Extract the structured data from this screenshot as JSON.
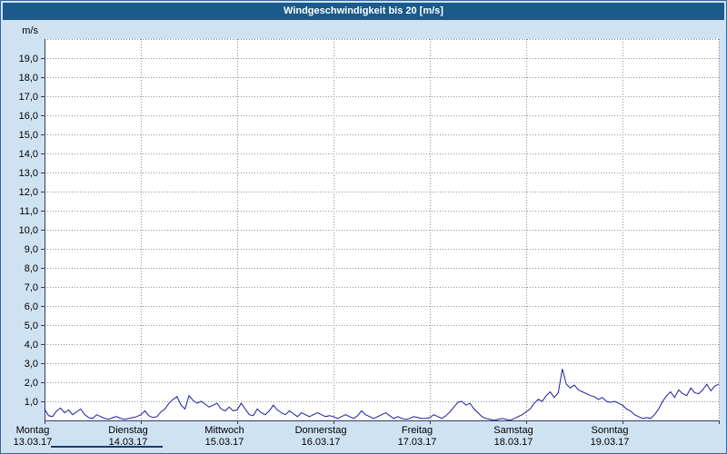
{
  "title_bar": {
    "text": "Windgeschwindigkeit bis 20 [m/s]"
  },
  "colors": {
    "titlebar_bg": "#1a5a8c",
    "titlebar_text": "#ffffff",
    "page_bg": "#cfe2f2",
    "page_border": "#33669c",
    "plot_bg": "#ffffff",
    "grid": "#909090",
    "axis": "#3a3a5e",
    "line": "#1c1c9c",
    "label": "#000000"
  },
  "chart_data": {
    "type": "line",
    "title": "Windgeschwindigkeit bis 20 [m/s]",
    "unit": "m/s",
    "ylim": [
      0,
      20
    ],
    "ytick_step": 1,
    "ytick_labels": [
      "19,0",
      "18,0",
      "17,0",
      "16,0",
      "15,0",
      "14,0",
      "13,0",
      "12,0",
      "11,0",
      "10,0",
      "9,0",
      "8,0",
      "7,0",
      "6,0",
      "5,0",
      "4,0",
      "3,0",
      "2,0",
      "1,0"
    ],
    "grid": true,
    "x_days": [
      {
        "name": "Montag",
        "date": "13.03.17"
      },
      {
        "name": "Dienstag",
        "date": "14.03.17"
      },
      {
        "name": "Mittwoch",
        "date": "15.03.17"
      },
      {
        "name": "Donnerstag",
        "date": "16.03.17"
      },
      {
        "name": "Freitag",
        "date": "17.03.17"
      },
      {
        "name": "Samstag",
        "date": "18.03.17"
      },
      {
        "name": "Sonntag",
        "date": "19.03.17"
      }
    ],
    "hours_total": 168,
    "step_hours": 1,
    "series": [
      {
        "name": "Windgeschwindigkeit",
        "values": [
          0.6,
          0.25,
          0.2,
          0.5,
          0.65,
          0.4,
          0.55,
          0.3,
          0.45,
          0.6,
          0.3,
          0.15,
          0.1,
          0.3,
          0.2,
          0.1,
          0.05,
          0.15,
          0.2,
          0.1,
          0.05,
          0.1,
          0.15,
          0.2,
          0.3,
          0.5,
          0.25,
          0.15,
          0.2,
          0.45,
          0.6,
          0.9,
          1.1,
          1.25,
          0.8,
          0.6,
          1.3,
          1.05,
          0.9,
          1.0,
          0.85,
          0.7,
          0.8,
          0.9,
          0.6,
          0.5,
          0.7,
          0.5,
          0.55,
          0.9,
          0.6,
          0.3,
          0.25,
          0.6,
          0.4,
          0.3,
          0.5,
          0.8,
          0.55,
          0.4,
          0.3,
          0.5,
          0.35,
          0.2,
          0.4,
          0.3,
          0.2,
          0.3,
          0.4,
          0.3,
          0.2,
          0.25,
          0.2,
          0.1,
          0.2,
          0.3,
          0.2,
          0.1,
          0.25,
          0.5,
          0.3,
          0.2,
          0.1,
          0.2,
          0.3,
          0.4,
          0.25,
          0.1,
          0.2,
          0.1,
          0.05,
          0.1,
          0.2,
          0.15,
          0.1,
          0.1,
          0.15,
          0.3,
          0.2,
          0.1,
          0.25,
          0.45,
          0.7,
          0.95,
          1.0,
          0.8,
          0.9,
          0.6,
          0.4,
          0.2,
          0.1,
          0.05,
          0.0,
          0.05,
          0.1,
          0.05,
          0.0,
          0.1,
          0.2,
          0.3,
          0.45,
          0.6,
          0.9,
          1.1,
          1.0,
          1.3,
          1.5,
          1.2,
          1.45,
          2.7,
          1.9,
          1.7,
          1.85,
          1.6,
          1.5,
          1.4,
          1.3,
          1.25,
          1.1,
          1.2,
          1.0,
          0.95,
          1.0,
          0.9,
          0.8,
          0.6,
          0.5,
          0.3,
          0.2,
          0.1,
          0.15,
          0.1,
          0.3,
          0.6,
          1.0,
          1.3,
          1.5,
          1.2,
          1.6,
          1.4,
          1.3,
          1.7,
          1.45,
          1.4,
          1.6,
          1.9,
          1.55,
          1.8,
          1.9
        ]
      }
    ]
  }
}
